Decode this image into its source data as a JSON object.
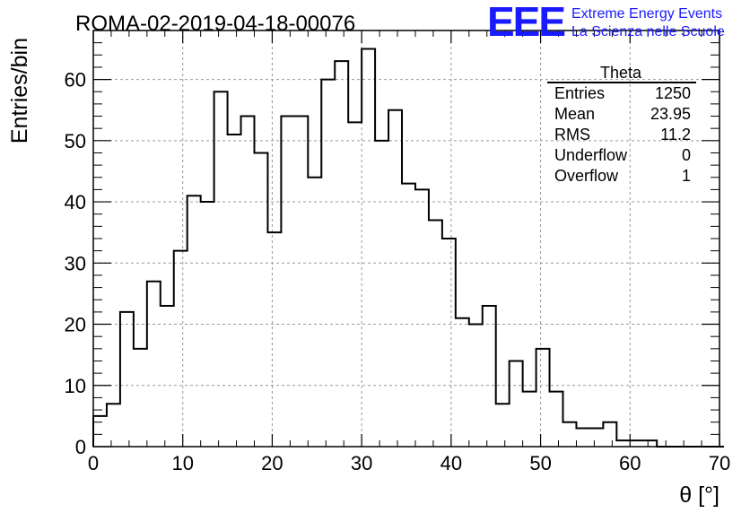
{
  "chart_data": {
    "type": "bar",
    "title": "ROMA-02-2019-04-18-00076",
    "xlabel": "θ [°]",
    "ylabel": "Entries/bin",
    "xlim": [
      0,
      70
    ],
    "ylim": [
      0,
      68
    ],
    "xticks": [
      "0",
      "10",
      "20",
      "30",
      "40",
      "50",
      "60",
      "70"
    ],
    "yticks": [
      "0",
      "10",
      "20",
      "30",
      "40",
      "50",
      "60"
    ],
    "grid": true,
    "bin_width": 1.5,
    "bin_edges_start": 0,
    "values": [
      5,
      7,
      22,
      16,
      27,
      23,
      32,
      41,
      40,
      58,
      51,
      54,
      48,
      35,
      54,
      54,
      44,
      60,
      63,
      53,
      65,
      50,
      55,
      43,
      42,
      37,
      34,
      21,
      20,
      23,
      7,
      14,
      9,
      16,
      9,
      4,
      3,
      3,
      4,
      1,
      1,
      1,
      0,
      0,
      0,
      0,
      0
    ]
  },
  "stats_box": {
    "title": "Theta",
    "rows": [
      {
        "label": "Entries",
        "value": "1250"
      },
      {
        "label": "Mean",
        "value": "23.95"
      },
      {
        "label": "RMS",
        "value": "11.2"
      },
      {
        "label": "Underflow",
        "value": "0"
      },
      {
        "label": "Overflow",
        "value": "1"
      }
    ]
  },
  "logo": {
    "mark": "EEE",
    "line1": "Extreme Energy Events",
    "line2": "La Scienza nelle Scuole",
    "color": "#1a1aff"
  }
}
